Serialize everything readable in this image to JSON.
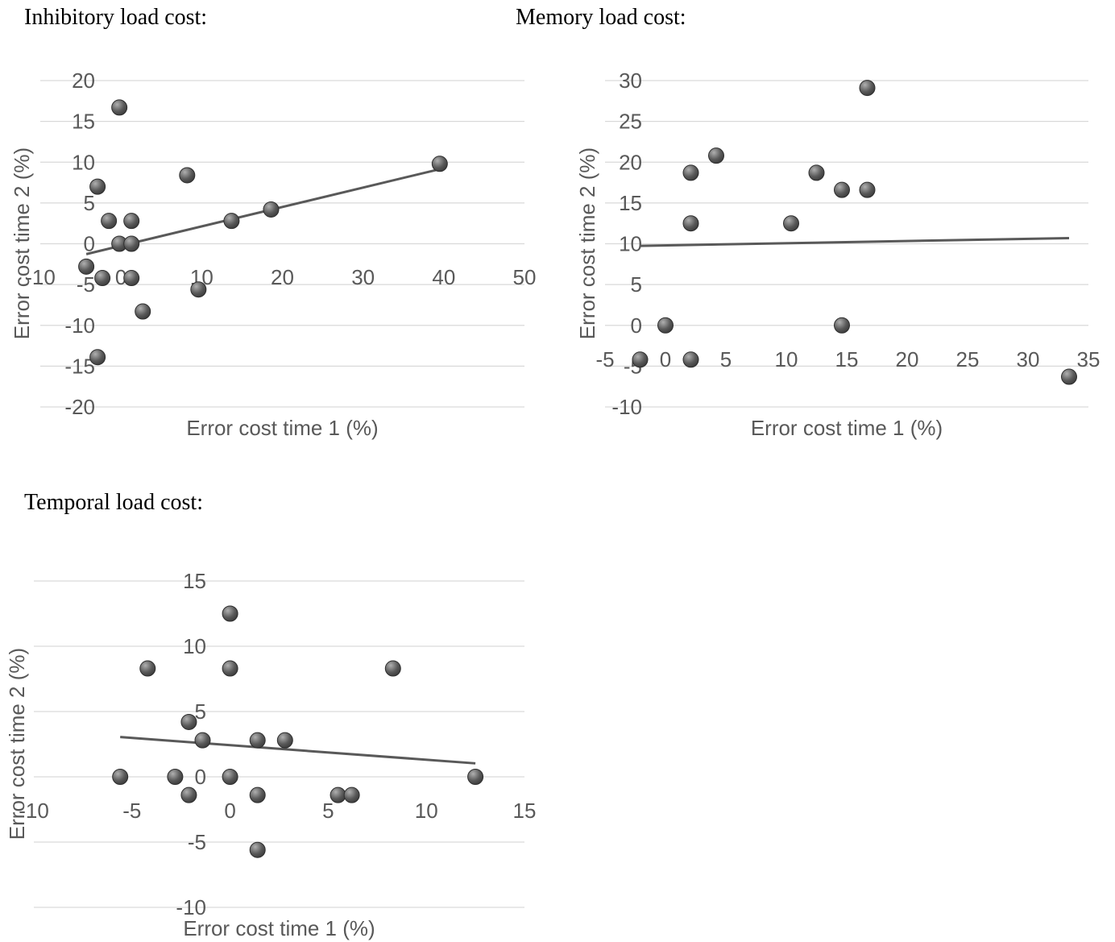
{
  "captions": {
    "inhibitory": "Inhibitory load cost:",
    "memory": "Memory load cost:",
    "temporal": "Temporal load cost:"
  },
  "colors": {
    "gridline": "#d9d9d9",
    "tick_text": "#595959",
    "trendline": "#595959",
    "marker_light": "#b0b0b0",
    "marker_dark": "#3a3a3a"
  },
  "chart_data": [
    {
      "id": "inhibitory",
      "type": "scatter",
      "title": "",
      "xlabel": "Error cost time 1 (%)",
      "ylabel": "Error cost time 2 (%)",
      "xlim": [
        -10,
        50
      ],
      "ylim": [
        -20,
        20
      ],
      "xticks": [
        -10,
        0,
        10,
        20,
        30,
        40,
        50
      ],
      "yticks": [
        -20,
        -15,
        -10,
        -5,
        0,
        5,
        10,
        15,
        20
      ],
      "grid": true,
      "legend": "none",
      "trendline": true,
      "points": [
        {
          "x": -0.2,
          "y": 16.7
        },
        {
          "x": -2.9,
          "y": 7.0
        },
        {
          "x": -1.5,
          "y": 2.8
        },
        {
          "x": 1.3,
          "y": 2.8
        },
        {
          "x": -0.2,
          "y": 0.0
        },
        {
          "x": 1.3,
          "y": 0.0
        },
        {
          "x": -4.3,
          "y": -2.8
        },
        {
          "x": -2.3,
          "y": -4.2
        },
        {
          "x": 1.3,
          "y": -4.2
        },
        {
          "x": 2.7,
          "y": -8.3
        },
        {
          "x": -2.9,
          "y": -13.9
        },
        {
          "x": 8.2,
          "y": 8.4
        },
        {
          "x": 9.6,
          "y": -5.6
        },
        {
          "x": 13.7,
          "y": 2.8
        },
        {
          "x": 18.6,
          "y": 4.2
        },
        {
          "x": 39.5,
          "y": 9.8
        }
      ]
    },
    {
      "id": "memory",
      "type": "scatter",
      "title": "",
      "xlabel": "Error cost time 1 (%)",
      "ylabel": "Error cost time 2 (%)",
      "xlim": [
        -5,
        35
      ],
      "ylim": [
        -10,
        30
      ],
      "xticks": [
        -5,
        0,
        5,
        10,
        15,
        20,
        25,
        30,
        35
      ],
      "yticks": [
        -10,
        -5,
        0,
        5,
        10,
        15,
        20,
        25,
        30
      ],
      "grid": true,
      "legend": "none",
      "trendline": true,
      "points": [
        {
          "x": -2.1,
          "y": -4.2
        },
        {
          "x": 0.0,
          "y": 0.0
        },
        {
          "x": 2.1,
          "y": -4.2
        },
        {
          "x": 2.1,
          "y": 12.5
        },
        {
          "x": 2.1,
          "y": 18.7
        },
        {
          "x": 4.2,
          "y": 20.8
        },
        {
          "x": 10.4,
          "y": 12.5
        },
        {
          "x": 12.5,
          "y": 18.7
        },
        {
          "x": 14.6,
          "y": 16.6
        },
        {
          "x": 14.6,
          "y": 0.0
        },
        {
          "x": 16.7,
          "y": 16.6
        },
        {
          "x": 16.7,
          "y": 29.1
        },
        {
          "x": 33.4,
          "y": -6.3
        }
      ]
    },
    {
      "id": "temporal",
      "type": "scatter",
      "title": "",
      "xlabel": "Error cost time 1 (%)",
      "ylabel": "Error cost time 2 (%)",
      "xlim": [
        -10,
        15
      ],
      "ylim": [
        -10,
        15
      ],
      "xticks": [
        -10,
        -5,
        0,
        5,
        10,
        15
      ],
      "yticks": [
        -10,
        -5,
        0,
        5,
        10,
        15
      ],
      "grid": true,
      "legend": "none",
      "trendline": true,
      "points": [
        {
          "x": 0.0,
          "y": 12.5
        },
        {
          "x": -4.2,
          "y": 8.3
        },
        {
          "x": 0.0,
          "y": 8.3
        },
        {
          "x": 8.3,
          "y": 8.3
        },
        {
          "x": -2.1,
          "y": 4.2
        },
        {
          "x": -1.4,
          "y": 2.8
        },
        {
          "x": 1.4,
          "y": 2.8
        },
        {
          "x": 2.8,
          "y": 2.8
        },
        {
          "x": -5.6,
          "y": 0.0
        },
        {
          "x": -2.8,
          "y": 0.0
        },
        {
          "x": 0.0,
          "y": 0.0
        },
        {
          "x": 12.5,
          "y": 0.0
        },
        {
          "x": -2.1,
          "y": -1.4
        },
        {
          "x": 1.4,
          "y": -1.4
        },
        {
          "x": 5.5,
          "y": -1.4
        },
        {
          "x": 6.2,
          "y": -1.4
        },
        {
          "x": 1.4,
          "y": -5.6
        }
      ]
    }
  ]
}
